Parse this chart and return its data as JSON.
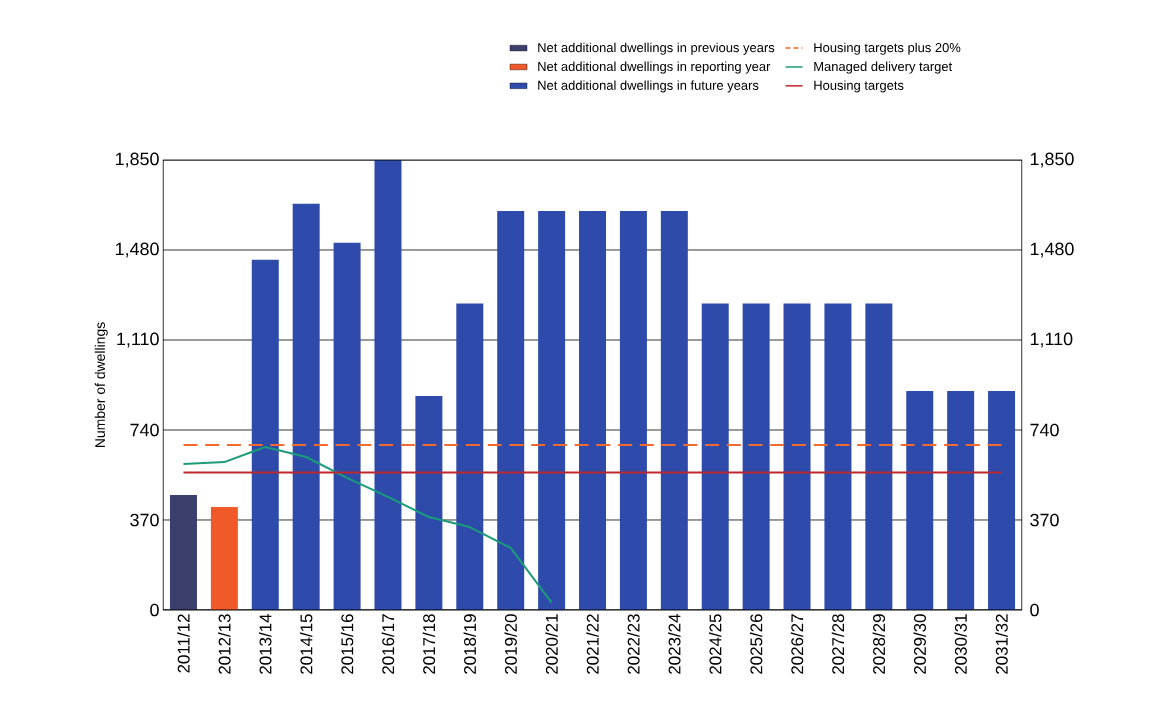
{
  "chart_data": {
    "type": "bar",
    "ylabel": "Number of dwellings",
    "categories": [
      "2011/12",
      "2012/13",
      "2013/14",
      "2014/15",
      "2015/16",
      "2016/17",
      "2017/18",
      "2018/19",
      "2019/20",
      "2020/21",
      "2021/22",
      "2022/23",
      "2023/24",
      "2024/25",
      "2025/26",
      "2026/27",
      "2027/28",
      "2028/29",
      "2029/30",
      "2030/31",
      "2031/32"
    ],
    "series": [
      {
        "name": "Net additional dwellings in previous years",
        "color": "#3b3f6e",
        "values": [
          473,
          null,
          null,
          null,
          null,
          null,
          null,
          null,
          null,
          null,
          null,
          null,
          null,
          null,
          null,
          null,
          null,
          null,
          null,
          null,
          null
        ]
      },
      {
        "name": "Net additional dwellings in reporting year",
        "color": "#f05a28",
        "values": [
          null,
          423,
          null,
          null,
          null,
          null,
          null,
          null,
          null,
          null,
          null,
          null,
          null,
          null,
          null,
          null,
          null,
          null,
          null,
          null,
          null
        ]
      },
      {
        "name": "Net additional dwellings in future years",
        "color": "#2e4bab",
        "values": [
          null,
          null,
          1440,
          1670,
          1510,
          1850,
          880,
          1260,
          1640,
          1640,
          1640,
          1640,
          1640,
          1260,
          1260,
          1260,
          1260,
          1260,
          900,
          900,
          900
        ]
      },
      {
        "name": "Housing targets plus 20%",
        "type": "line",
        "color": "#f26a2e",
        "line_style": "dashed",
        "values": [
          678,
          678,
          678,
          678,
          678,
          678,
          678,
          678,
          678,
          678,
          678,
          678,
          678,
          678,
          678,
          678,
          678,
          678,
          678,
          678,
          678
        ]
      },
      {
        "name": "Managed delivery target",
        "type": "line",
        "color": "#1a9c7a",
        "values": [
          600,
          608,
          670,
          629,
          543,
          465,
          382,
          341,
          255,
          30,
          null,
          null,
          null,
          null,
          null,
          null,
          null,
          null,
          null,
          null,
          null
        ]
      },
      {
        "name": "Housing targets",
        "type": "line",
        "color": "#c0272d",
        "values": [
          565,
          565,
          565,
          565,
          565,
          565,
          565,
          565,
          565,
          565,
          565,
          565,
          565,
          565,
          565,
          565,
          565,
          565,
          565,
          565,
          565
        ]
      }
    ],
    "ylim": [
      0,
      1850
    ],
    "yticks": [
      {
        "value": 0,
        "label": "0"
      },
      {
        "value": 370,
        "label": "370"
      },
      {
        "value": 740,
        "label": "740"
      },
      {
        "value": 1110,
        "label": "1,110"
      },
      {
        "value": 1480,
        "label": "1,480"
      },
      {
        "value": 1850,
        "label": "1,850"
      }
    ],
    "y2lim": [
      0,
      1850
    ],
    "y2ticks": [
      {
        "value": 0,
        "label": "0"
      },
      {
        "value": 370,
        "label": "370"
      },
      {
        "value": 740,
        "label": "740"
      },
      {
        "value": 1110,
        "label": "1,110"
      },
      {
        "value": 1480,
        "label": "1,480"
      },
      {
        "value": 1850,
        "label": "1,850"
      }
    ],
    "grid": "y",
    "legend": "top right"
  }
}
